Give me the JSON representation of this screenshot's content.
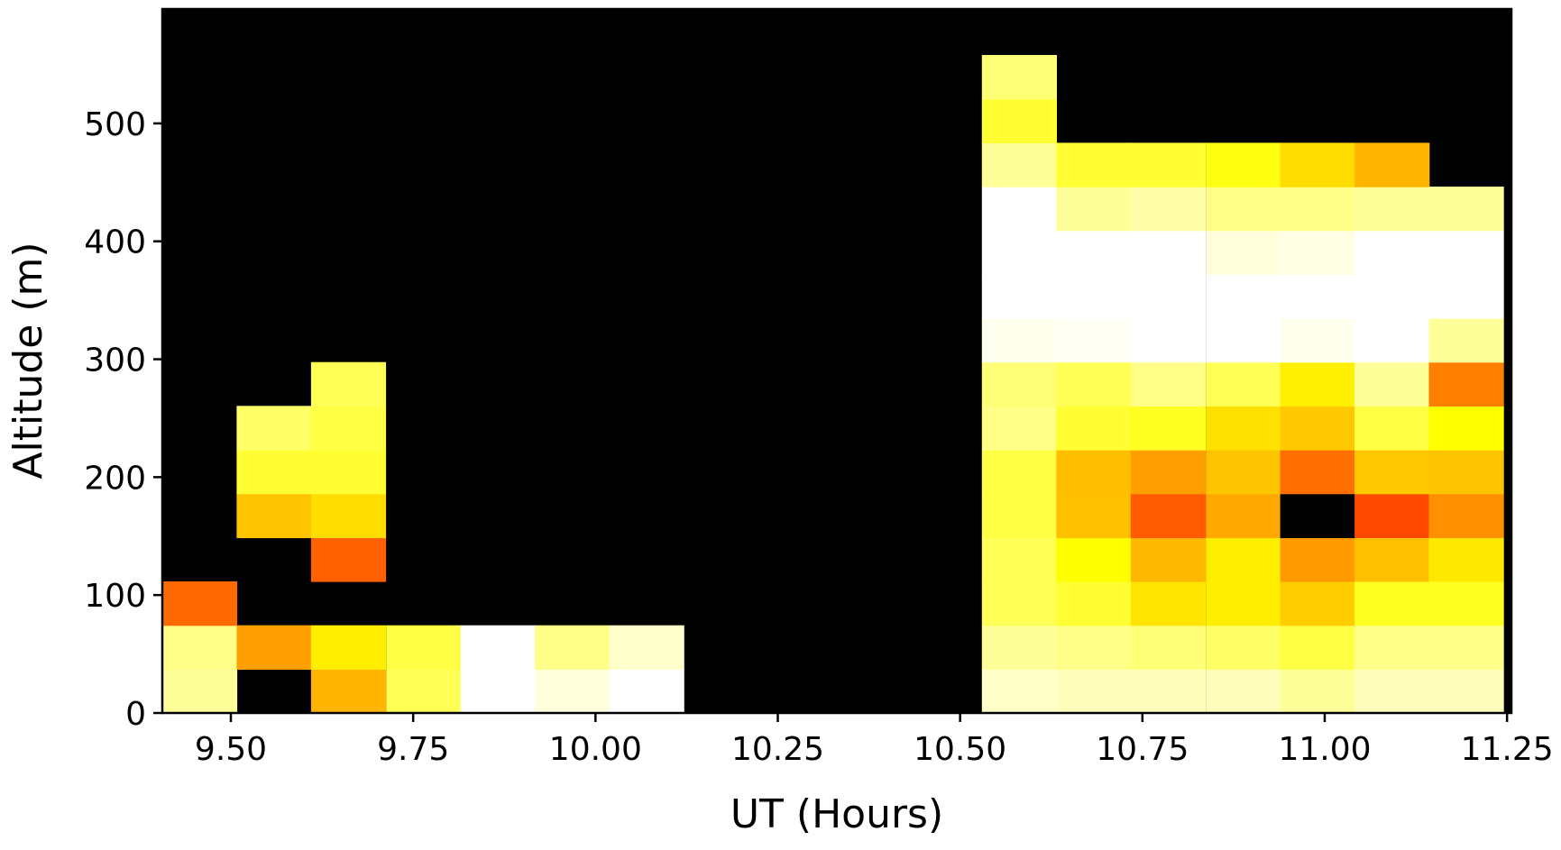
{
  "chart_data": {
    "type": "heatmap",
    "xlabel": "UT (Hours)",
    "ylabel": "Altitude (m)",
    "xlim": [
      9.406,
      11.256
    ],
    "ylim": [
      0,
      597
    ],
    "x_ticks": [
      9.5,
      9.75,
      10.0,
      10.25,
      10.5,
      10.75,
      11.0,
      11.25
    ],
    "x_tick_labels": [
      "9.50",
      "9.75",
      "10.00",
      "10.25",
      "10.50",
      "10.75",
      "11.00",
      "11.25"
    ],
    "y_ticks": [
      0,
      100,
      200,
      300,
      400,
      500
    ],
    "y_tick_labels": [
      "0",
      "100",
      "200",
      "300",
      "400",
      "500"
    ],
    "background_color": "#000000",
    "cell_width_hours": 0.1022,
    "cell_height_m": 37.2,
    "cells": [
      {
        "x": 9.457,
        "y": 18.6,
        "color": "#FFFF99"
      },
      {
        "x": 9.457,
        "y": 55.8,
        "color": "#FFFF88"
      },
      {
        "x": 9.457,
        "y": 93.0,
        "color": "#FF6A00"
      },
      {
        "x": 9.559,
        "y": 55.8,
        "color": "#FFA000"
      },
      {
        "x": 9.559,
        "y": 167.4,
        "color": "#FFC400"
      },
      {
        "x": 9.559,
        "y": 204.6,
        "color": "#FFFF33"
      },
      {
        "x": 9.559,
        "y": 241.8,
        "color": "#FFFF66"
      },
      {
        "x": 9.661,
        "y": 18.6,
        "color": "#FFB400"
      },
      {
        "x": 9.661,
        "y": 55.8,
        "color": "#FFEE00"
      },
      {
        "x": 9.661,
        "y": 130.2,
        "color": "#FF6000"
      },
      {
        "x": 9.661,
        "y": 167.4,
        "color": "#FFDD00"
      },
      {
        "x": 9.661,
        "y": 204.6,
        "color": "#FFFF33"
      },
      {
        "x": 9.661,
        "y": 241.8,
        "color": "#FFFF44"
      },
      {
        "x": 9.661,
        "y": 279.0,
        "color": "#FFFF55"
      },
      {
        "x": 9.764,
        "y": 18.6,
        "color": "#FFFF55"
      },
      {
        "x": 9.764,
        "y": 55.8,
        "color": "#FFFF44"
      },
      {
        "x": 9.866,
        "y": 18.6,
        "color": "#FFFFFF"
      },
      {
        "x": 9.866,
        "y": 55.8,
        "color": "#FFFFFF"
      },
      {
        "x": 9.968,
        "y": 18.6,
        "color": "#FFFFDD"
      },
      {
        "x": 9.968,
        "y": 55.8,
        "color": "#FFFF88"
      },
      {
        "x": 10.07,
        "y": 18.6,
        "color": "#FFFFFF"
      },
      {
        "x": 10.07,
        "y": 55.8,
        "color": "#FFFFCC"
      },
      {
        "x": 10.581,
        "y": 18.6,
        "color": "#FFFFC8"
      },
      {
        "x": 10.581,
        "y": 55.8,
        "color": "#FFFF99"
      },
      {
        "x": 10.581,
        "y": 93.0,
        "color": "#FFFF55"
      },
      {
        "x": 10.581,
        "y": 130.2,
        "color": "#FFFF55"
      },
      {
        "x": 10.581,
        "y": 167.4,
        "color": "#FFFF44"
      },
      {
        "x": 10.581,
        "y": 204.6,
        "color": "#FFFF44"
      },
      {
        "x": 10.581,
        "y": 241.8,
        "color": "#FFFF88"
      },
      {
        "x": 10.581,
        "y": 279.0,
        "color": "#FFFF77"
      },
      {
        "x": 10.581,
        "y": 316.2,
        "color": "#FFFFEE"
      },
      {
        "x": 10.581,
        "y": 353.4,
        "color": "#FFFFFF"
      },
      {
        "x": 10.581,
        "y": 390.6,
        "color": "#FFFFFF"
      },
      {
        "x": 10.581,
        "y": 427.8,
        "color": "#FFFFFF"
      },
      {
        "x": 10.581,
        "y": 465.0,
        "color": "#FFFF99"
      },
      {
        "x": 10.581,
        "y": 502.2,
        "color": "#FFFF33"
      },
      {
        "x": 10.581,
        "y": 539.4,
        "color": "#FFFF77"
      },
      {
        "x": 10.683,
        "y": 18.6,
        "color": "#FFFFBB"
      },
      {
        "x": 10.683,
        "y": 55.8,
        "color": "#FFFF88"
      },
      {
        "x": 10.683,
        "y": 93.0,
        "color": "#FFFF33"
      },
      {
        "x": 10.683,
        "y": 130.2,
        "color": "#FFFF00"
      },
      {
        "x": 10.683,
        "y": 167.4,
        "color": "#FFC000"
      },
      {
        "x": 10.683,
        "y": 204.6,
        "color": "#FFBE00"
      },
      {
        "x": 10.683,
        "y": 241.8,
        "color": "#FFFF33"
      },
      {
        "x": 10.683,
        "y": 279.0,
        "color": "#FFFF55"
      },
      {
        "x": 10.683,
        "y": 316.2,
        "color": "#FFFFF4"
      },
      {
        "x": 10.683,
        "y": 353.4,
        "color": "#FFFFFF"
      },
      {
        "x": 10.683,
        "y": 390.6,
        "color": "#FFFFFF"
      },
      {
        "x": 10.683,
        "y": 427.8,
        "color": "#FFFF99"
      },
      {
        "x": 10.683,
        "y": 465.0,
        "color": "#FFFF33"
      },
      {
        "x": 10.785,
        "y": 18.6,
        "color": "#FFFFBB"
      },
      {
        "x": 10.785,
        "y": 55.8,
        "color": "#FFFF77"
      },
      {
        "x": 10.785,
        "y": 93.0,
        "color": "#FFE400"
      },
      {
        "x": 10.785,
        "y": 130.2,
        "color": "#FFB800"
      },
      {
        "x": 10.785,
        "y": 167.4,
        "color": "#FF5A00"
      },
      {
        "x": 10.785,
        "y": 204.6,
        "color": "#FFA000"
      },
      {
        "x": 10.785,
        "y": 241.8,
        "color": "#FFFF22"
      },
      {
        "x": 10.785,
        "y": 279.0,
        "color": "#FFFF88"
      },
      {
        "x": 10.785,
        "y": 316.2,
        "color": "#FFFFFF"
      },
      {
        "x": 10.785,
        "y": 353.4,
        "color": "#FFFFFF"
      },
      {
        "x": 10.785,
        "y": 390.6,
        "color": "#FFFFFF"
      },
      {
        "x": 10.785,
        "y": 427.8,
        "color": "#FFFFAA"
      },
      {
        "x": 10.785,
        "y": 465.0,
        "color": "#FFFF33"
      },
      {
        "x": 10.888,
        "y": 18.6,
        "color": "#FFFFBB"
      },
      {
        "x": 10.888,
        "y": 55.8,
        "color": "#FFFF66"
      },
      {
        "x": 10.888,
        "y": 93.0,
        "color": "#FFEE00"
      },
      {
        "x": 10.888,
        "y": 130.2,
        "color": "#FFEE00"
      },
      {
        "x": 10.888,
        "y": 167.4,
        "color": "#FFA800"
      },
      {
        "x": 10.888,
        "y": 204.6,
        "color": "#FFC400"
      },
      {
        "x": 10.888,
        "y": 241.8,
        "color": "#FFE000"
      },
      {
        "x": 10.888,
        "y": 279.0,
        "color": "#FFFF55"
      },
      {
        "x": 10.888,
        "y": 316.2,
        "color": "#FFFFFF"
      },
      {
        "x": 10.888,
        "y": 353.4,
        "color": "#FFFFFF"
      },
      {
        "x": 10.888,
        "y": 390.6,
        "color": "#FFFFDD"
      },
      {
        "x": 10.888,
        "y": 427.8,
        "color": "#FFFF88"
      },
      {
        "x": 10.888,
        "y": 465.0,
        "color": "#FFFF11"
      },
      {
        "x": 10.99,
        "y": 18.6,
        "color": "#FFFF99"
      },
      {
        "x": 10.99,
        "y": 55.8,
        "color": "#FFFF44"
      },
      {
        "x": 10.99,
        "y": 93.0,
        "color": "#FFCC00"
      },
      {
        "x": 10.99,
        "y": 130.2,
        "color": "#FF9A00"
      },
      {
        "x": 10.99,
        "y": 167.4,
        "color": "#000000"
      },
      {
        "x": 10.99,
        "y": 204.6,
        "color": "#FF7000"
      },
      {
        "x": 10.99,
        "y": 241.8,
        "color": "#FFC800"
      },
      {
        "x": 10.99,
        "y": 279.0,
        "color": "#FFF000"
      },
      {
        "x": 10.99,
        "y": 316.2,
        "color": "#FFFFEE"
      },
      {
        "x": 10.99,
        "y": 353.4,
        "color": "#FFFFFF"
      },
      {
        "x": 10.99,
        "y": 390.6,
        "color": "#FFFFE6"
      },
      {
        "x": 10.99,
        "y": 427.8,
        "color": "#FFFF88"
      },
      {
        "x": 10.99,
        "y": 465.0,
        "color": "#FFDD00"
      },
      {
        "x": 11.092,
        "y": 18.6,
        "color": "#FFFFBB"
      },
      {
        "x": 11.092,
        "y": 55.8,
        "color": "#FFFF88"
      },
      {
        "x": 11.092,
        "y": 93.0,
        "color": "#FFFF22"
      },
      {
        "x": 11.092,
        "y": 130.2,
        "color": "#FFC000"
      },
      {
        "x": 11.092,
        "y": 167.4,
        "color": "#FF4800"
      },
      {
        "x": 11.092,
        "y": 204.6,
        "color": "#FFC800"
      },
      {
        "x": 11.092,
        "y": 241.8,
        "color": "#FFFF44"
      },
      {
        "x": 11.092,
        "y": 279.0,
        "color": "#FFFF99"
      },
      {
        "x": 11.092,
        "y": 316.2,
        "color": "#FFFFFF"
      },
      {
        "x": 11.092,
        "y": 353.4,
        "color": "#FFFFFF"
      },
      {
        "x": 11.092,
        "y": 390.6,
        "color": "#FFFFFF"
      },
      {
        "x": 11.092,
        "y": 427.8,
        "color": "#FFFF99"
      },
      {
        "x": 11.092,
        "y": 465.0,
        "color": "#FFB400"
      },
      {
        "x": 11.194,
        "y": 18.6,
        "color": "#FFFFBB"
      },
      {
        "x": 11.194,
        "y": 55.8,
        "color": "#FFFF88"
      },
      {
        "x": 11.194,
        "y": 93.0,
        "color": "#FFFF22"
      },
      {
        "x": 11.194,
        "y": 130.2,
        "color": "#FFE800"
      },
      {
        "x": 11.194,
        "y": 167.4,
        "color": "#FF9000"
      },
      {
        "x": 11.194,
        "y": 204.6,
        "color": "#FFC400"
      },
      {
        "x": 11.194,
        "y": 241.8,
        "color": "#FFFF00"
      },
      {
        "x": 11.194,
        "y": 279.0,
        "color": "#FF8000"
      },
      {
        "x": 11.194,
        "y": 316.2,
        "color": "#FFFF99"
      },
      {
        "x": 11.194,
        "y": 353.4,
        "color": "#FFFFFF"
      },
      {
        "x": 11.194,
        "y": 390.6,
        "color": "#FFFFFF"
      },
      {
        "x": 11.194,
        "y": 427.8,
        "color": "#FFFF99"
      }
    ]
  }
}
